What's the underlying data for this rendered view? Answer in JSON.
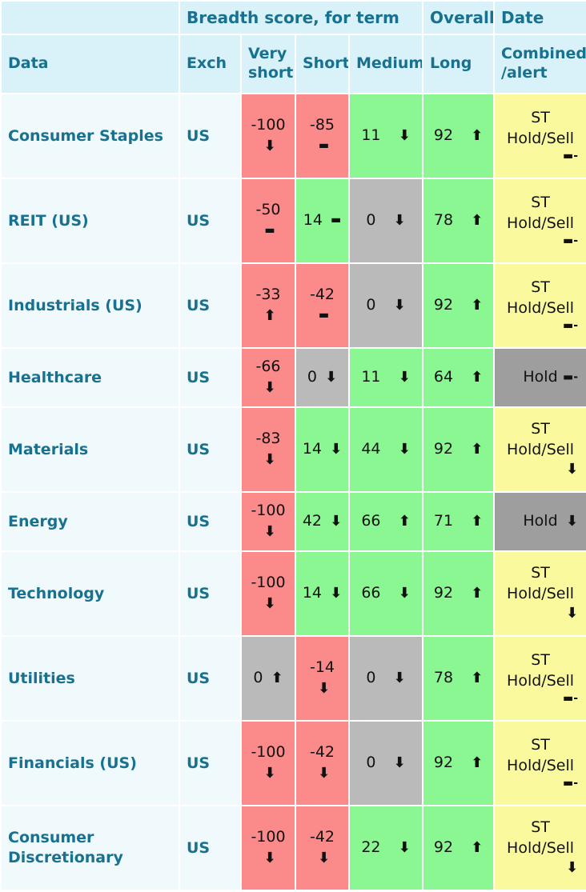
{
  "colors": {
    "header_bg": "#d9f1f9",
    "label_bg": "#f0f9fc",
    "teal_text": "#17718f",
    "red": "#fb8a8a",
    "green": "#8af792",
    "gray": "#bababa",
    "dark_gray": "#9e9e9e",
    "yellow": "#fbf99d",
    "cell_text": "#111111"
  },
  "icons": {
    "up": "⬆",
    "down": "⬇",
    "flat": "▬",
    "flat_minus": "▬-"
  },
  "header": {
    "groups": {
      "breadth": "Breadth score, for term",
      "overall": "Overall",
      "date": "Date"
    },
    "columns": {
      "data": "Data",
      "exch": "Exch",
      "very_short": "Very short",
      "short": "Short",
      "medium": "Medium",
      "long": "Long",
      "combined": "Combined /alert"
    }
  },
  "rows": [
    {
      "name": "Consumer Staples",
      "exch": "US",
      "very_short": {
        "value": "-100",
        "trend": "down",
        "tone": "red"
      },
      "short": {
        "value": "-85",
        "trend": "flat",
        "tone": "red"
      },
      "medium": {
        "value": "11",
        "trend": "down",
        "tone": "green"
      },
      "long": {
        "value": "92",
        "trend": "up",
        "tone": "green"
      },
      "combined": {
        "value": "ST Hold/Sell",
        "trend": "flat_minus",
        "tone": "yellow"
      }
    },
    {
      "name": "REIT (US)",
      "exch": "US",
      "very_short": {
        "value": "-50",
        "trend": "flat",
        "tone": "red"
      },
      "short": {
        "value": "14",
        "trend": "flat",
        "tone": "green"
      },
      "medium": {
        "value": "0",
        "trend": "down",
        "tone": "gray"
      },
      "long": {
        "value": "78",
        "trend": "up",
        "tone": "green"
      },
      "combined": {
        "value": "ST Hold/Sell",
        "trend": "flat_minus",
        "tone": "yellow"
      }
    },
    {
      "name": "Industrials (US)",
      "exch": "US",
      "very_short": {
        "value": "-33",
        "trend": "up",
        "tone": "red"
      },
      "short": {
        "value": "-42",
        "trend": "flat",
        "tone": "red"
      },
      "medium": {
        "value": "0",
        "trend": "down",
        "tone": "gray"
      },
      "long": {
        "value": "92",
        "trend": "up",
        "tone": "green"
      },
      "combined": {
        "value": "ST Hold/Sell",
        "trend": "flat_minus",
        "tone": "yellow"
      }
    },
    {
      "name": "Healthcare",
      "exch": "US",
      "very_short": {
        "value": "-66",
        "trend": "down",
        "tone": "red"
      },
      "short": {
        "value": "0",
        "trend": "down",
        "tone": "gray"
      },
      "medium": {
        "value": "11",
        "trend": "down",
        "tone": "green"
      },
      "long": {
        "value": "64",
        "trend": "up",
        "tone": "green"
      },
      "combined": {
        "value": "Hold",
        "trend": "flat_minus",
        "tone": "dark_gray"
      }
    },
    {
      "name": "Materials",
      "exch": "US",
      "very_short": {
        "value": "-83",
        "trend": "down",
        "tone": "red"
      },
      "short": {
        "value": "14",
        "trend": "down",
        "tone": "green"
      },
      "medium": {
        "value": "44",
        "trend": "down",
        "tone": "green"
      },
      "long": {
        "value": "92",
        "trend": "up",
        "tone": "green"
      },
      "combined": {
        "value": "ST Hold/Sell",
        "trend": "down",
        "tone": "yellow"
      }
    },
    {
      "name": "Energy",
      "exch": "US",
      "very_short": {
        "value": "-100",
        "trend": "down",
        "tone": "red"
      },
      "short": {
        "value": "42",
        "trend": "down",
        "tone": "green"
      },
      "medium": {
        "value": "66",
        "trend": "up",
        "tone": "green"
      },
      "long": {
        "value": "71",
        "trend": "up",
        "tone": "green"
      },
      "combined": {
        "value": "Hold",
        "trend": "down",
        "tone": "dark_gray"
      }
    },
    {
      "name": "Technology",
      "exch": "US",
      "very_short": {
        "value": "-100",
        "trend": "down",
        "tone": "red"
      },
      "short": {
        "value": "14",
        "trend": "down",
        "tone": "green"
      },
      "medium": {
        "value": "66",
        "trend": "down",
        "tone": "green"
      },
      "long": {
        "value": "92",
        "trend": "up",
        "tone": "green"
      },
      "combined": {
        "value": "ST Hold/Sell",
        "trend": "down",
        "tone": "yellow"
      }
    },
    {
      "name": "Utilities",
      "exch": "US",
      "very_short": {
        "value": "0",
        "trend": "up",
        "tone": "gray"
      },
      "short": {
        "value": "-14",
        "trend": "down",
        "tone": "red"
      },
      "medium": {
        "value": "0",
        "trend": "down",
        "tone": "gray"
      },
      "long": {
        "value": "78",
        "trend": "up",
        "tone": "green"
      },
      "combined": {
        "value": "ST Hold/Sell",
        "trend": "flat_minus",
        "tone": "yellow"
      }
    },
    {
      "name": "Financials (US)",
      "exch": "US",
      "very_short": {
        "value": "-100",
        "trend": "down",
        "tone": "red"
      },
      "short": {
        "value": "-42",
        "trend": "down",
        "tone": "red"
      },
      "medium": {
        "value": "0",
        "trend": "down",
        "tone": "gray"
      },
      "long": {
        "value": "92",
        "trend": "up",
        "tone": "green"
      },
      "combined": {
        "value": "ST Hold/Sell",
        "trend": "flat_minus",
        "tone": "yellow"
      }
    },
    {
      "name": "Consumer Discretionary",
      "exch": "US",
      "very_short": {
        "value": "-100",
        "trend": "down",
        "tone": "red"
      },
      "short": {
        "value": "-42",
        "trend": "down",
        "tone": "red"
      },
      "medium": {
        "value": "22",
        "trend": "down",
        "tone": "green"
      },
      "long": {
        "value": "92",
        "trend": "up",
        "tone": "green"
      },
      "combined": {
        "value": "ST Hold/Sell",
        "trend": "down",
        "tone": "yellow"
      }
    }
  ]
}
